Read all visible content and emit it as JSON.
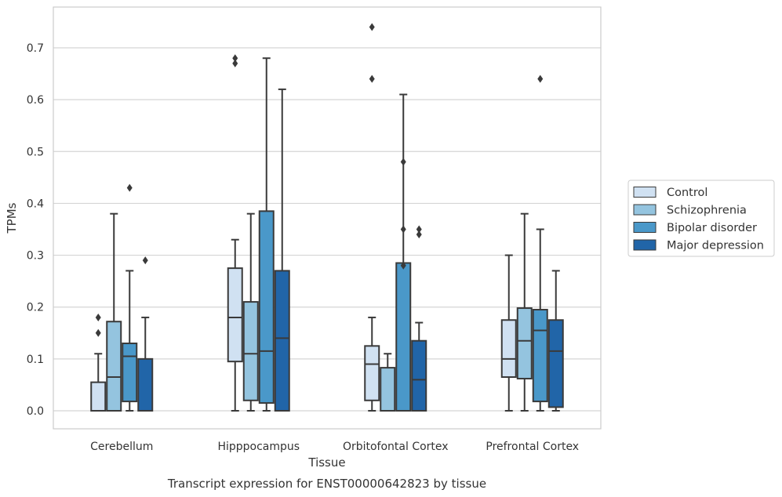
{
  "chart_data": {
    "type": "boxplot",
    "title": "",
    "caption": "Transcript expression for ENST00000642823 by tissue",
    "xlabel": "Tissue",
    "ylabel": "TPMs",
    "ylim": [
      -0.035,
      0.775
    ],
    "yticks": [
      0.0,
      0.1,
      0.2,
      0.3,
      0.4,
      0.5,
      0.6,
      0.7
    ],
    "ytick_labels": [
      "0.0",
      "0.1",
      "0.2",
      "0.3",
      "0.4",
      "0.5",
      "0.6",
      "0.7"
    ],
    "grid": "horizontal",
    "legend_position": "right",
    "categories": [
      "Cerebellum",
      "Hipppocampus",
      "Orbitofontal Cortex",
      "Prefrontal Cortex"
    ],
    "series": [
      {
        "name": "Control",
        "color": "#d0e1f2",
        "boxes": [
          {
            "whislo": 0.0,
            "q1": 0.0,
            "med": 0.0,
            "q3": 0.055,
            "whishi": 0.11,
            "fliers": [
              0.15,
              0.18
            ]
          },
          {
            "whislo": 0.0,
            "q1": 0.095,
            "med": 0.18,
            "q3": 0.275,
            "whishi": 0.33,
            "fliers": [
              0.67,
              0.68
            ]
          },
          {
            "whislo": 0.0,
            "q1": 0.02,
            "med": 0.09,
            "q3": 0.125,
            "whishi": 0.18,
            "fliers": [
              0.64,
              0.74
            ]
          },
          {
            "whislo": 0.0,
            "q1": 0.065,
            "med": 0.1,
            "q3": 0.175,
            "whishi": 0.3,
            "fliers": []
          }
        ]
      },
      {
        "name": "Schizophrenia",
        "color": "#94c4df",
        "boxes": [
          {
            "whislo": 0.0,
            "q1": 0.0,
            "med": 0.065,
            "q3": 0.172,
            "whishi": 0.38,
            "fliers": []
          },
          {
            "whislo": 0.0,
            "q1": 0.02,
            "med": 0.11,
            "q3": 0.21,
            "whishi": 0.38,
            "fliers": []
          },
          {
            "whislo": 0.0,
            "q1": 0.0,
            "med": 0.0,
            "q3": 0.083,
            "whishi": 0.11,
            "fliers": []
          },
          {
            "whislo": 0.0,
            "q1": 0.062,
            "med": 0.135,
            "q3": 0.198,
            "whishi": 0.38,
            "fliers": []
          }
        ]
      },
      {
        "name": "Bipolar disorder",
        "color": "#4a98c9",
        "boxes": [
          {
            "whislo": 0.0,
            "q1": 0.018,
            "med": 0.105,
            "q3": 0.13,
            "whishi": 0.27,
            "fliers": [
              0.43
            ]
          },
          {
            "whislo": 0.0,
            "q1": 0.015,
            "med": 0.115,
            "q3": 0.385,
            "whishi": 0.68,
            "fliers": []
          },
          {
            "whislo": 0.0,
            "q1": 0.0,
            "med": 0.0,
            "q3": 0.285,
            "whishi": 0.61,
            "fliers": [
              0.28,
              0.35,
              0.48
            ]
          },
          {
            "whislo": 0.0,
            "q1": 0.018,
            "med": 0.155,
            "q3": 0.195,
            "whishi": 0.35,
            "fliers": [
              0.64
            ]
          }
        ]
      },
      {
        "name": "Major depression",
        "color": "#2165a8",
        "boxes": [
          {
            "whislo": 0.0,
            "q1": 0.0,
            "med": 0.0,
            "q3": 0.1,
            "whishi": 0.18,
            "fliers": [
              0.29
            ]
          },
          {
            "whislo": 0.0,
            "q1": 0.0,
            "med": 0.14,
            "q3": 0.27,
            "whishi": 0.62,
            "fliers": []
          },
          {
            "whislo": 0.0,
            "q1": 0.0,
            "med": 0.06,
            "q3": 0.135,
            "whishi": 0.17,
            "fliers": [
              0.34,
              0.35
            ]
          },
          {
            "whislo": 0.0,
            "q1": 0.007,
            "med": 0.115,
            "q3": 0.175,
            "whishi": 0.27,
            "fliers": []
          }
        ]
      }
    ]
  }
}
